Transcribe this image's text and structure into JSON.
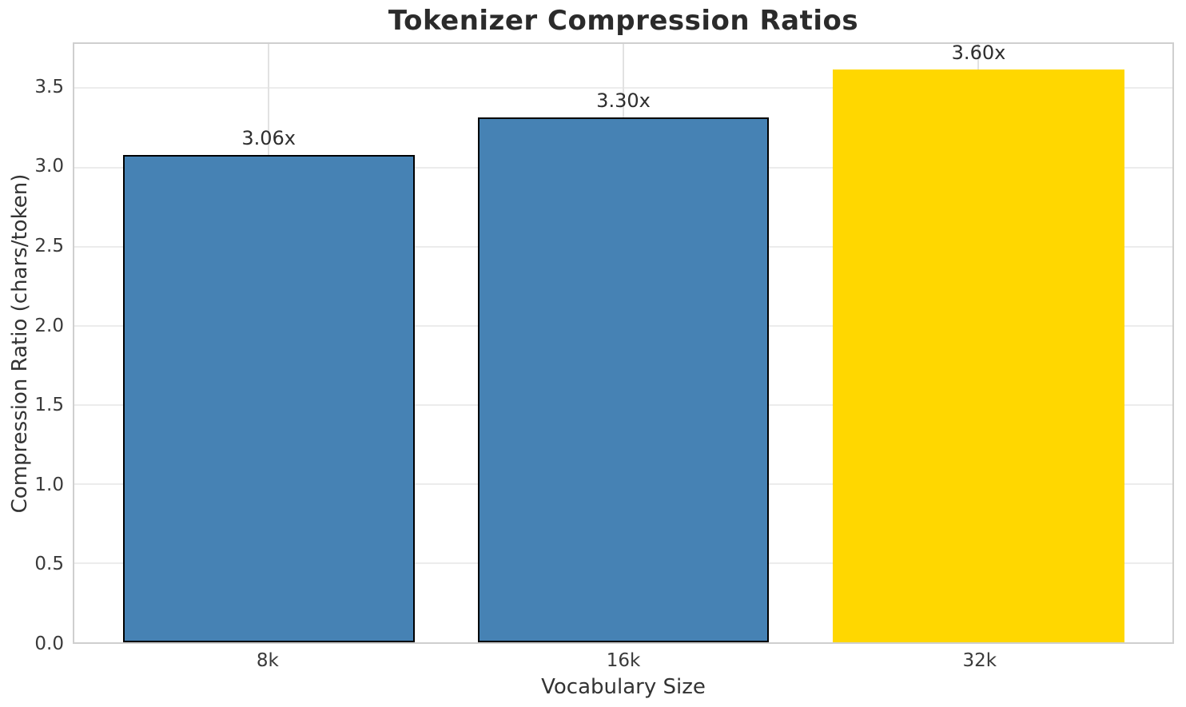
{
  "chart_data": {
    "type": "bar",
    "title": "Tokenizer Compression Ratios",
    "xlabel": "Vocabulary Size",
    "ylabel": "Compression Ratio (chars/token)",
    "categories": [
      "8k",
      "16k",
      "32k"
    ],
    "values": [
      3.06,
      3.3,
      3.6
    ],
    "bar_labels": [
      "3.06x",
      "3.30x",
      "3.60x"
    ],
    "bar_colors": [
      "#4682B4",
      "#4682B4",
      "#FFD700"
    ],
    "bar_edge_colors": [
      "#000000",
      "#000000",
      "#FFD700"
    ],
    "ylim": [
      0,
      3.78
    ],
    "yticks": [
      0,
      0.5,
      1,
      1.5,
      2,
      2.5,
      3,
      3.5
    ],
    "ytick_labels": [
      "0.0",
      "0.5",
      "1.0",
      "1.5",
      "2.0",
      "2.5",
      "3.0",
      "3.5"
    ],
    "grid": "both",
    "legend_position": "none"
  },
  "colors": {
    "bar_blue": "#4682B4",
    "bar_gold": "#FFD700",
    "title_text": "#2b2b2b",
    "tick_text": "#3a3a3a",
    "grid_line_h": "#ececec",
    "grid_line_v": "#e2e2e2",
    "spine": "#cfcfcf",
    "background": "#ffffff"
  }
}
